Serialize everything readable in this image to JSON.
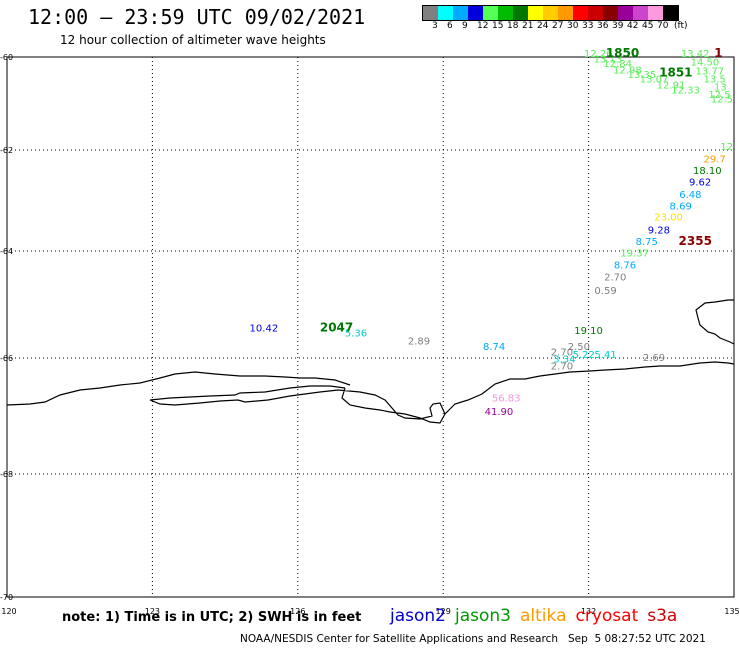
{
  "header": {
    "title": "12:00 – 23:59 UTC 09/02/2021",
    "subtitle": "12 hour collection of altimeter wave heights"
  },
  "color_scale": {
    "labels": [
      "3",
      "6",
      "9",
      "12",
      "15",
      "18",
      "21",
      "24",
      "27",
      "30",
      "33",
      "36",
      "39",
      "42",
      "45",
      "70",
      "(ft)"
    ],
    "colors": [
      "#808080",
      "#00ffff",
      "#00aaff",
      "#0000dd",
      "#55ff55",
      "#00bb00",
      "#007700",
      "#ffff00",
      "#ffcc00",
      "#ff9900",
      "#ff0000",
      "#cc0000",
      "#880000",
      "#990099",
      "#cc44cc",
      "#ff99dd",
      "#000000"
    ]
  },
  "axes": {
    "lat_labels": [
      "-60",
      "-62",
      "-64",
      "-66",
      "-68",
      "-70"
    ],
    "lon_labels": [
      "120",
      "123",
      "126",
      "129",
      "132",
      "135"
    ]
  },
  "footer": {
    "note": "note: 1) Time is in UTC; 2) SWH is in feet",
    "satellites": [
      {
        "name": "jason2",
        "color": "#0000cc"
      },
      {
        "name": "jason3",
        "color": "#009900"
      },
      {
        "name": "altika",
        "color": "#ff9900"
      },
      {
        "name": "cryosat",
        "color": "#ff0000"
      },
      {
        "name": "s3a",
        "color": "#cc0000"
      }
    ],
    "credit": "NOAA/NESDIS Center for Satellite Applications and Research   Sep  5 08:27:52 UTC 2021"
  },
  "observations": [
    {
      "lon": 132.2,
      "lat": -59.98,
      "text": "12.26",
      "color": "#55ee55"
    },
    {
      "lon": 132.4,
      "lat": -60.12,
      "text": "13.13",
      "color": "#55ee55"
    },
    {
      "lon": 132.6,
      "lat": -60.22,
      "text": "12.84",
      "color": "#55ee55"
    },
    {
      "lon": 132.8,
      "lat": -60.35,
      "text": "12.98",
      "color": "#55ee55"
    },
    {
      "lon": 133.1,
      "lat": -60.45,
      "text": "13.35",
      "color": "#55ee55"
    },
    {
      "lon": 133.35,
      "lat": -60.55,
      "text": "13.07",
      "color": "#55ee55"
    },
    {
      "lon": 133.7,
      "lat": -60.68,
      "text": "12.91",
      "color": "#55ee55"
    },
    {
      "lon": 134.0,
      "lat": -60.78,
      "text": "12.33",
      "color": "#55ee55"
    },
    {
      "lon": 134.2,
      "lat": -59.98,
      "text": "13.42",
      "color": "#55ee55"
    },
    {
      "lon": 134.4,
      "lat": -60.18,
      "text": "14.50",
      "color": "#55ee55"
    },
    {
      "lon": 134.5,
      "lat": -60.38,
      "text": "13.77",
      "color": "#55ee55"
    },
    {
      "lon": 134.6,
      "lat": -60.55,
      "text": "13.5",
      "color": "#55ee55"
    },
    {
      "lon": 134.72,
      "lat": -60.72,
      "text": "13",
      "color": "#55ee55"
    },
    {
      "lon": 134.7,
      "lat": -60.88,
      "text": "12.5",
      "color": "#55ee55"
    },
    {
      "lon": 134.75,
      "lat": -60.98,
      "text": "12.5",
      "color": "#55ee55"
    },
    {
      "lon": 134.85,
      "lat": -62.0,
      "text": "12",
      "color": "#55ee55"
    },
    {
      "lon": 134.6,
      "lat": -62.25,
      "text": "29.7",
      "color": "#ff9900"
    },
    {
      "lon": 134.45,
      "lat": -62.48,
      "text": "18.10",
      "color": "#007700"
    },
    {
      "lon": 134.3,
      "lat": -62.7,
      "text": "9.62",
      "color": "#0000dd"
    },
    {
      "lon": 134.1,
      "lat": -62.95,
      "text": "6.48",
      "color": "#00aaff"
    },
    {
      "lon": 133.9,
      "lat": -63.18,
      "text": "8.69",
      "color": "#00aaff"
    },
    {
      "lon": 133.65,
      "lat": -63.4,
      "text": "23.00",
      "color": "#ffdd00"
    },
    {
      "lon": 133.45,
      "lat": -63.65,
      "text": "9.28",
      "color": "#0000dd"
    },
    {
      "lon": 133.2,
      "lat": -63.88,
      "text": "8.75",
      "color": "#00aaff"
    },
    {
      "lon": 132.95,
      "lat": -64.1,
      "text": "19.37",
      "color": "#55ee55"
    },
    {
      "lon": 132.75,
      "lat": -64.33,
      "text": "8.76",
      "color": "#00aaff"
    },
    {
      "lon": 132.55,
      "lat": -64.55,
      "text": "2.70",
      "color": "#808080"
    },
    {
      "lon": 132.35,
      "lat": -64.8,
      "text": "0.59",
      "color": "#808080"
    },
    {
      "lon": 132.0,
      "lat": -65.55,
      "text": "19.10",
      "color": "#007700"
    },
    {
      "lon": 131.8,
      "lat": -65.85,
      "text": "2.50",
      "color": "#808080"
    },
    {
      "lon": 131.45,
      "lat": -65.95,
      "text": "2.70",
      "color": "#808080"
    },
    {
      "lon": 131.5,
      "lat": -66.08,
      "text": "3.34",
      "color": "#00cccc"
    },
    {
      "lon": 131.9,
      "lat": -66.0,
      "text": "5.22",
      "color": "#00cccc"
    },
    {
      "lon": 132.35,
      "lat": -66.0,
      "text": "5.41",
      "color": "#00cccc"
    },
    {
      "lon": 131.45,
      "lat": -66.2,
      "text": "2.70",
      "color": "#808080"
    },
    {
      "lon": 133.35,
      "lat": -66.05,
      "text": "2.69",
      "color": "#808080"
    },
    {
      "lon": 128.5,
      "lat": -65.75,
      "text": "2.89",
      "color": "#808080"
    },
    {
      "lon": 130.05,
      "lat": -65.85,
      "text": "8.74",
      "color": "#00aaff"
    },
    {
      "lon": 125.3,
      "lat": -65.5,
      "text": "10.42",
      "color": "#0000dd"
    },
    {
      "lon": 127.2,
      "lat": -65.6,
      "text": "5.36",
      "color": "#00cccc"
    },
    {
      "lon": 130.3,
      "lat": -66.75,
      "text": "56.83",
      "color": "#ee99dd"
    },
    {
      "lon": 130.15,
      "lat": -66.98,
      "text": "41.90",
      "color": "#990099"
    }
  ],
  "time_labels": [
    {
      "lon": 132.7,
      "lat": -59.98,
      "text": "1850",
      "color": "#007700"
    },
    {
      "lon": 133.8,
      "lat": -60.42,
      "text": "1851",
      "color": "#007700"
    },
    {
      "lon": 134.68,
      "lat": -60.0,
      "text": "1",
      "color": "#880000"
    },
    {
      "lon": 134.2,
      "lat": -63.88,
      "text": "2355",
      "color": "#880000"
    },
    {
      "lon": 126.8,
      "lat": -65.5,
      "text": "2047",
      "color": "#007700"
    }
  ]
}
